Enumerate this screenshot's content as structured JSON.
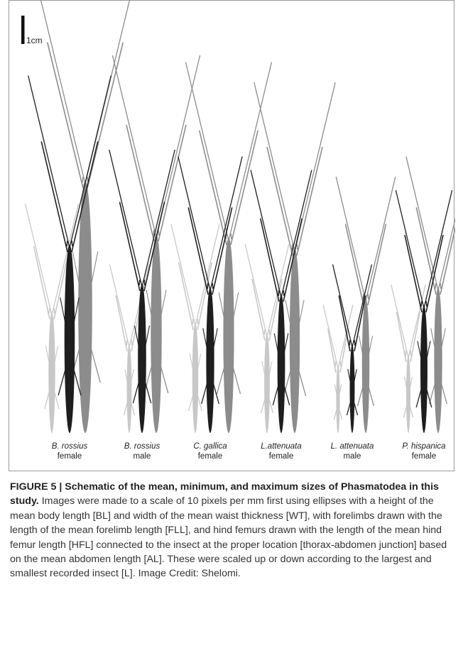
{
  "figure": {
    "scale_label": "1cm",
    "specimens": [
      {
        "species": "B. rossius",
        "sex": "female"
      },
      {
        "species": "B. rossius",
        "sex": "male"
      },
      {
        "species": "C. gallica",
        "sex": "female"
      },
      {
        "species": "L.attenuata",
        "sex": "female"
      },
      {
        "species": "L. attenuata",
        "sex": "male"
      },
      {
        "species": "P. hispanica",
        "sex": "female"
      }
    ],
    "caption": {
      "label": "FIGURE 5 | Schematic of the mean, minimum, and maximum sizes of Phasmatodea in this study.",
      "text": "Images were made to a scale of 10 pixels per mm first using ellipses with a height of the mean body length [BL] and width of the mean waist thickness [WT], with forelimbs drawn with the length of the mean forelimb length [FLL], and hind femurs drawn with the length of the mean hind femur length [HFL] connected to the insect at the proper location [thorax-abdomen junction] based on the mean abdomen length [AL]. These were scaled up or down according to the largest and smallest recorded insect [L]. Image Credit: Shelomi."
    }
  }
}
